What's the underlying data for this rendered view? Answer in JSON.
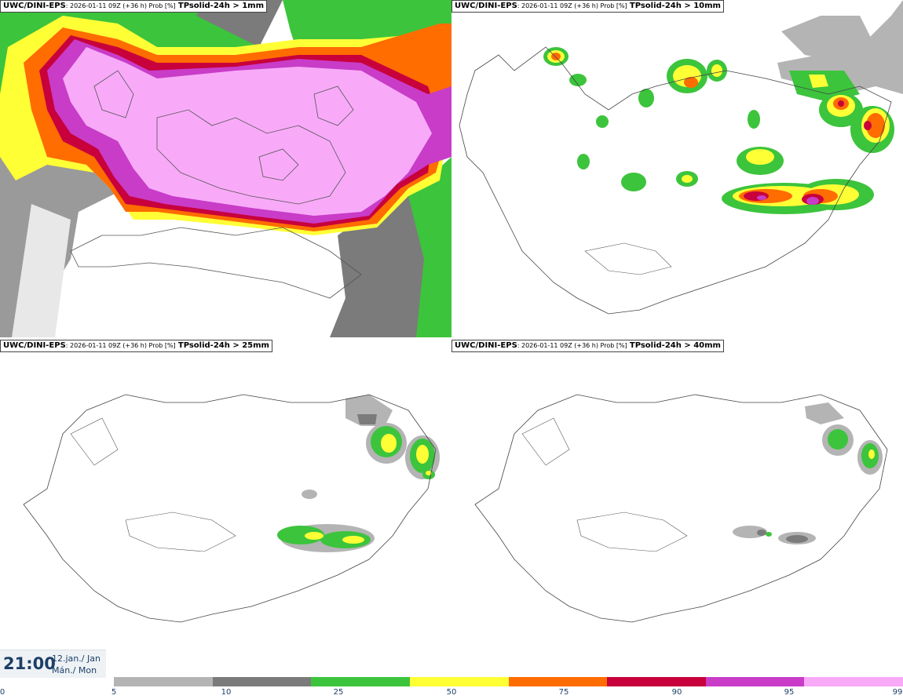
{
  "panels": [
    {
      "model": "UWC/DINI-EPS",
      "meta": ": 2026-01-11 09Z (+36 h) Prob [%]",
      "field": "TPsolid-24h > 1mm"
    },
    {
      "model": "UWC/DINI-EPS",
      "meta": ": 2026-01-11 09Z (+36 h) Prob [%]",
      "field": "TPsolid-24h > 10mm"
    },
    {
      "model": "UWC/DINI-EPS",
      "meta": ": 2026-01-11 09Z (+36 h) Prob [%]",
      "field": "TPsolid-24h > 25mm"
    },
    {
      "model": "UWC/DINI-EPS",
      "meta": ": 2026-01-11 09Z (+36 h) Prob [%]",
      "field": "TPsolid-24h > 40mm"
    }
  ],
  "valid_time": {
    "time": "21:00",
    "date_line1": "12.jan./ Jan",
    "date_line2": "Mán./ Mon"
  },
  "colorbar": {
    "ticks": [
      "0",
      "5",
      "10",
      "25",
      "50",
      "75",
      "90",
      "95",
      "99"
    ],
    "colors": [
      "#b4b4b4",
      "#7b7b7b",
      "#3cc43c",
      "#ffff36",
      "#ff6c00",
      "#c8003c",
      "#c83cc8",
      "#f8aaf8"
    ]
  }
}
